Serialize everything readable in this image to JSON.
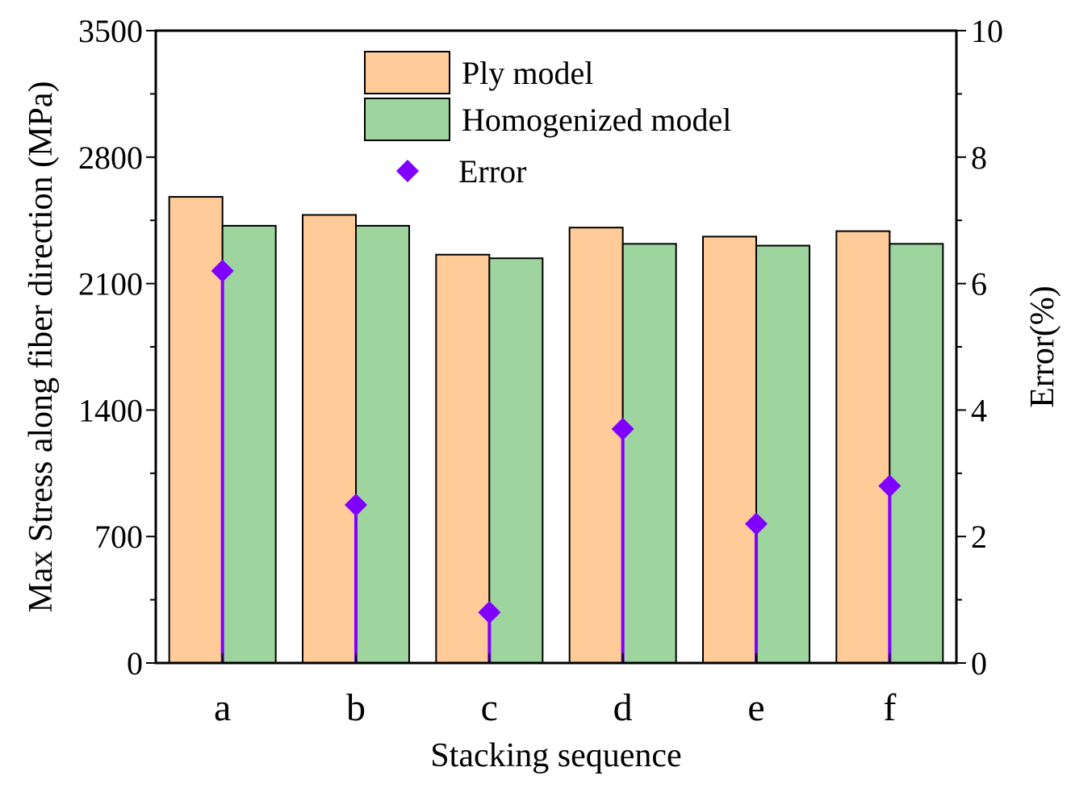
{
  "chart_data": {
    "type": "bar",
    "categories": [
      "a",
      "b",
      "c",
      "d",
      "e",
      "f"
    ],
    "series": [
      {
        "name": "Ply model",
        "values": [
          2580,
          2480,
          2260,
          2410,
          2360,
          2390
        ],
        "color": "#FFCC99"
      },
      {
        "name": "Homogenized model",
        "values": [
          2420,
          2420,
          2240,
          2320,
          2310,
          2320
        ],
        "color": "#9ED59E"
      }
    ],
    "error_series": {
      "name": "Error",
      "values": [
        6.2,
        2.5,
        0.8,
        3.7,
        2.2,
        2.8
      ],
      "color": "#7F00FF",
      "axis": "right"
    },
    "xlabel": "Stacking sequence",
    "ylabel": "Max Stress along fiber direction (MPa)",
    "ylabel_right": "Error(%)",
    "ylim": [
      0,
      3500
    ],
    "ylim_right": [
      0,
      10
    ],
    "yticks": [
      0,
      700,
      1400,
      2100,
      2800,
      3500
    ],
    "yticks_right": [
      0,
      2,
      4,
      6,
      8,
      10
    ],
    "legend_position": "top-center",
    "grid": false
  }
}
